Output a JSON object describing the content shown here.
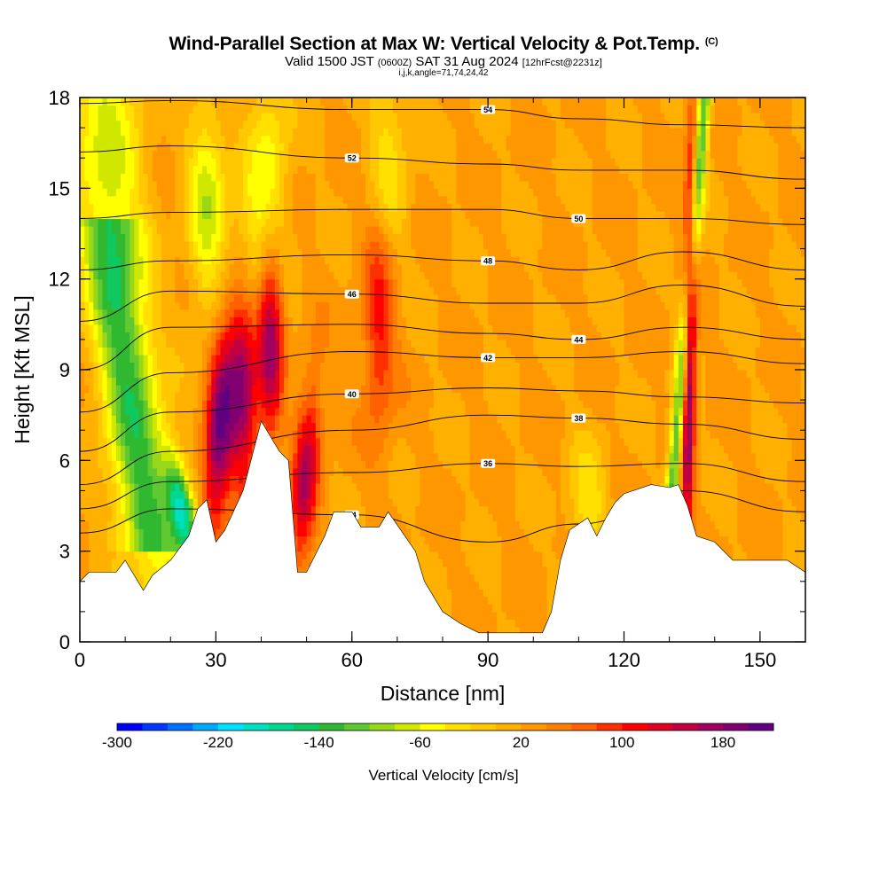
{
  "header": {
    "title": "Wind-Parallel Section at Max W: Vertical Velocity & Pot.Temp.",
    "copyright_mark": "(C)",
    "valid_prefix": "Valid 1500 JST",
    "valid_utc": "(0600Z)",
    "valid_date": "SAT 31 Aug 2024",
    "forecast_tag": "[12hrFcst@2231z]",
    "grid_info": "i,j,k,angle=71,74,24,42"
  },
  "chart_data": {
    "type": "heatmap",
    "xlabel": "Distance [nm]",
    "ylabel": "Height [Kft MSL]",
    "xlim": [
      0,
      160
    ],
    "ylim": [
      0,
      18
    ],
    "x_ticks": [
      0,
      30,
      60,
      90,
      120,
      150
    ],
    "x_tick_labels": [
      "0",
      "30",
      "60",
      "90",
      "120",
      "150"
    ],
    "x_minor_step": 10,
    "y_ticks": [
      0,
      3,
      6,
      9,
      12,
      15,
      18
    ],
    "y_tick_labels": [
      "0",
      "3",
      "6",
      "9",
      "12",
      "15",
      "18"
    ],
    "y_minor_step": 1,
    "colorbar": {
      "label": "Vertical Velocity [cm/s]",
      "min": -300,
      "max": 220,
      "step": 20,
      "tick_values": [
        -300,
        -220,
        -140,
        -60,
        20,
        100,
        180
      ],
      "tick_labels": [
        "-300",
        "-220",
        "-140",
        "-60",
        "20",
        "100",
        "180"
      ],
      "colors": [
        "#0000ff",
        "#0038ff",
        "#0070ff",
        "#00a8ff",
        "#00e0ff",
        "#00e0c0",
        "#00d890",
        "#10c860",
        "#30b830",
        "#60c830",
        "#98d818",
        "#d0e800",
        "#ffff00",
        "#ffe000",
        "#ffc800",
        "#ffb000",
        "#ff9800",
        "#ff8000",
        "#ff6000",
        "#ff3000",
        "#ff0000",
        "#e00020",
        "#c00040",
        "#a00060",
        "#800070",
        "#600080"
      ]
    },
    "terrain": [
      [
        0,
        2.0
      ],
      [
        2,
        2.3
      ],
      [
        8,
        2.3
      ],
      [
        10,
        2.7
      ],
      [
        14,
        1.7
      ],
      [
        16,
        2.2
      ],
      [
        20,
        2.7
      ],
      [
        24,
        3.5
      ],
      [
        26,
        4.4
      ],
      [
        28,
        4.7
      ],
      [
        30,
        3.3
      ],
      [
        32,
        3.7
      ],
      [
        36,
        5.0
      ],
      [
        40,
        7.3
      ],
      [
        44,
        6.3
      ],
      [
        46,
        6.0
      ],
      [
        48,
        2.3
      ],
      [
        50,
        2.3
      ],
      [
        54,
        3.5
      ],
      [
        56,
        4.3
      ],
      [
        60,
        4.3
      ],
      [
        62,
        3.8
      ],
      [
        66,
        3.8
      ],
      [
        68,
        4.3
      ],
      [
        74,
        3.0
      ],
      [
        76,
        2.0
      ],
      [
        78,
        1.5
      ],
      [
        80,
        1.0
      ],
      [
        84,
        0.6
      ],
      [
        88,
        0.3
      ],
      [
        96,
        0.3
      ],
      [
        102,
        0.3
      ],
      [
        104,
        1.0
      ],
      [
        106,
        2.7
      ],
      [
        108,
        3.7
      ],
      [
        110,
        3.9
      ],
      [
        112,
        4.1
      ],
      [
        114,
        3.5
      ],
      [
        116,
        4.1
      ],
      [
        118,
        4.6
      ],
      [
        120,
        4.9
      ],
      [
        126,
        5.2
      ],
      [
        130,
        5.1
      ],
      [
        132,
        5.2
      ],
      [
        134,
        4.5
      ],
      [
        136,
        3.5
      ],
      [
        140,
        3.3
      ],
      [
        144,
        2.7
      ],
      [
        148,
        2.7
      ],
      [
        152,
        2.7
      ],
      [
        156,
        2.7
      ],
      [
        160,
        2.3
      ]
    ],
    "theta_contours": [
      {
        "label": "34",
        "points": [
          [
            0,
            3.6
          ],
          [
            20,
            4.4
          ],
          [
            60,
            4.2
          ],
          [
            90,
            3.3
          ],
          [
            110,
            3.9
          ],
          [
            133,
            5.0
          ],
          [
            160,
            4.3
          ]
        ]
      },
      {
        "label": "36",
        "points": [
          [
            0,
            4.4
          ],
          [
            20,
            5.3
          ],
          [
            60,
            5.6
          ],
          [
            90,
            5.9
          ],
          [
            110,
            5.8
          ],
          [
            133,
            5.9
          ],
          [
            160,
            5.3
          ]
        ]
      },
      {
        "label": "38",
        "points": [
          [
            0,
            5.2
          ],
          [
            20,
            6.3
          ],
          [
            60,
            7.0
          ],
          [
            90,
            7.5
          ],
          [
            110,
            7.4
          ],
          [
            133,
            7.2
          ],
          [
            160,
            6.7
          ]
        ]
      },
      {
        "label": "40",
        "points": [
          [
            0,
            6.3
          ],
          [
            20,
            7.6
          ],
          [
            60,
            8.2
          ],
          [
            90,
            8.4
          ],
          [
            110,
            8.3
          ],
          [
            133,
            8.1
          ],
          [
            160,
            7.9
          ]
        ]
      },
      {
        "label": "42",
        "points": [
          [
            0,
            7.6
          ],
          [
            20,
            8.9
          ],
          [
            60,
            9.6
          ],
          [
            90,
            9.4
          ],
          [
            110,
            9.4
          ],
          [
            133,
            9.6
          ],
          [
            160,
            9.2
          ]
        ]
      },
      {
        "label": "44",
        "points": [
          [
            0,
            9.0
          ],
          [
            20,
            10.4
          ],
          [
            60,
            10.5
          ],
          [
            90,
            10.2
          ],
          [
            110,
            10.0
          ],
          [
            133,
            10.4
          ],
          [
            160,
            10.0
          ]
        ]
      },
      {
        "label": "46",
        "points": [
          [
            0,
            10.6
          ],
          [
            20,
            11.6
          ],
          [
            60,
            11.5
          ],
          [
            90,
            11.2
          ],
          [
            110,
            11.2
          ],
          [
            133,
            11.8
          ],
          [
            160,
            11.1
          ]
        ]
      },
      {
        "label": "48",
        "points": [
          [
            0,
            12.3
          ],
          [
            20,
            12.6
          ],
          [
            60,
            12.8
          ],
          [
            90,
            12.6
          ],
          [
            110,
            12.3
          ],
          [
            133,
            12.9
          ],
          [
            160,
            12.3
          ]
        ]
      },
      {
        "label": "50",
        "points": [
          [
            0,
            14.0
          ],
          [
            20,
            14.2
          ],
          [
            60,
            14.3
          ],
          [
            90,
            14.3
          ],
          [
            110,
            14.0
          ],
          [
            133,
            14.0
          ],
          [
            160,
            13.8
          ]
        ]
      },
      {
        "label": "52",
        "points": [
          [
            0,
            16.2
          ],
          [
            20,
            16.4
          ],
          [
            60,
            16.0
          ],
          [
            90,
            15.8
          ],
          [
            110,
            15.6
          ],
          [
            133,
            15.6
          ],
          [
            160,
            15.3
          ]
        ]
      },
      {
        "label": "54",
        "points": [
          [
            0,
            17.8
          ],
          [
            20,
            17.9
          ],
          [
            60,
            17.6
          ],
          [
            90,
            17.6
          ],
          [
            110,
            17.3
          ],
          [
            133,
            17.1
          ],
          [
            160,
            17.0
          ]
        ]
      }
    ]
  }
}
